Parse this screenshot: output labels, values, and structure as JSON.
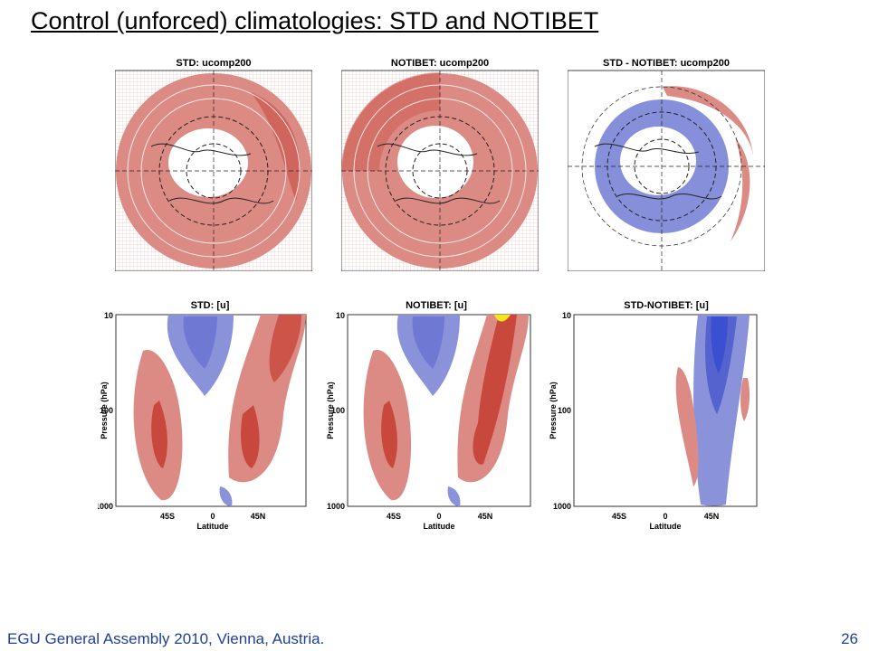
{
  "slide": {
    "title": "Control (unforced) climatologies: STD and NOTIBET",
    "footer_left": "EGU General Assembly 2010, Vienna, Austria.",
    "page_number": "26"
  },
  "maps": [
    {
      "title": "STD: ucomp200"
    },
    {
      "title": "NOTIBET: ucomp200"
    },
    {
      "title": "STD - NOTIBET: ucomp200"
    }
  ],
  "sections": [
    {
      "title": "STD:  [u]"
    },
    {
      "title": "NOTIBET:  [u]"
    },
    {
      "title": "STD-NOTIBET:  [u]"
    }
  ],
  "axes": {
    "ylabel": "Pressure (hPa)",
    "xlabel": "Latitude",
    "yticks": [
      "10",
      "100",
      "1000"
    ],
    "xticks": [
      "45S",
      "0",
      "45N"
    ]
  },
  "colors": {
    "positive": "#d9817b",
    "positive_strong": "#d63a2c",
    "negative": "#7d86d8",
    "negative_strong": "#3b4fd1",
    "max": "#f5e61a",
    "footer": "#1f3f9a"
  }
}
